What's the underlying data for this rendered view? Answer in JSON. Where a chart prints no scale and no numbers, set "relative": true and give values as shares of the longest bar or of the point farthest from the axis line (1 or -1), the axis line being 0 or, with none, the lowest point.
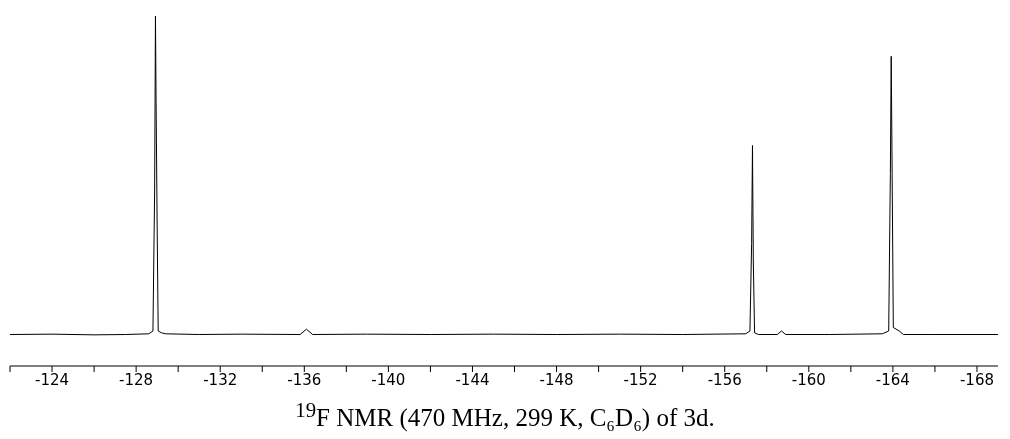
{
  "chart_data": {
    "type": "line",
    "title": "$^{19}$F NMR (470 MHz, 299 K, C₆D₆) of 3d.",
    "relative": true,
    "x": [
      -122.0,
      -124,
      -126,
      -127.5,
      -128.6,
      -128.8,
      -128.88,
      -128.92,
      -128.95,
      -129.0,
      -129.05,
      -129.2,
      -129.4,
      -131,
      -133,
      -135.8,
      -136.1,
      -136.4,
      -139,
      -142,
      -145,
      -148,
      -151,
      -154,
      -157.0,
      -157.2,
      -157.28,
      -157.32,
      -157.36,
      -157.42,
      -157.6,
      -158.5,
      -158.7,
      -158.9,
      -161,
      -163.5,
      -163.8,
      -163.88,
      -163.92,
      -163.96,
      -164.02,
      -164.3,
      -164.5,
      -166,
      -169
    ],
    "series": [
      {
        "color": "#000000",
        "values": [
          0.09,
          0.091,
          0.089,
          0.09,
          0.092,
          0.1,
          0.5,
          1.0,
          0.75,
          0.4,
          0.1,
          0.095,
          0.092,
          0.09,
          0.091,
          0.09,
          0.105,
          0.09,
          0.091,
          0.09,
          0.091,
          0.09,
          0.091,
          0.09,
          0.092,
          0.1,
          0.35,
          0.63,
          0.3,
          0.095,
          0.09,
          0.09,
          0.1,
          0.09,
          0.09,
          0.092,
          0.1,
          0.55,
          0.885,
          0.58,
          0.11,
          0.1,
          0.09,
          0.09,
          0.09
        ]
      }
    ],
    "xlim": [
      -122,
      -169
    ],
    "xticks": [
      -124,
      -128,
      -132,
      -136,
      -140,
      -144,
      -148,
      -152,
      -156,
      -160,
      -164,
      -168,
      {
        "value": -122,
        "label": null
      },
      {
        "value": -126,
        "label": null
      },
      {
        "value": -130,
        "label": null
      },
      {
        "value": -134,
        "label": null
      },
      {
        "value": -138,
        "label": null
      },
      {
        "value": -142,
        "label": null
      },
      {
        "value": -146,
        "label": null
      },
      {
        "value": -150,
        "label": null
      },
      {
        "value": -154,
        "label": null
      },
      {
        "value": -158,
        "label": null
      },
      {
        "value": -162,
        "label": null
      },
      {
        "value": -166,
        "label": null
      }
    ],
    "grid": false,
    "legend": false,
    "marker": "none",
    "line_style": "solid"
  }
}
